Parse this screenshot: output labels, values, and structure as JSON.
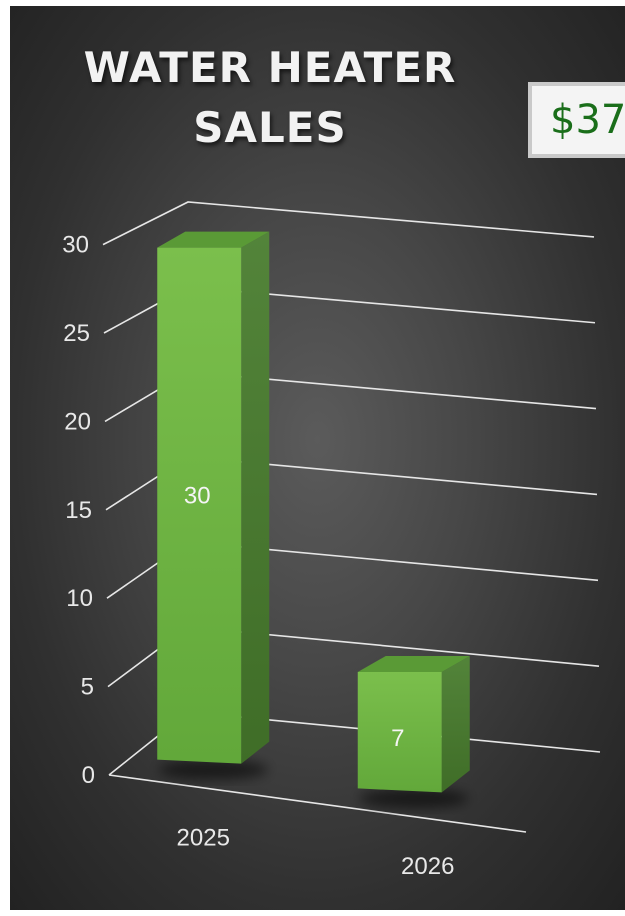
{
  "chart_data": {
    "type": "bar",
    "title": "WATER HEATER SALES",
    "title_lines": [
      "WATER HEATER",
      "SALES"
    ],
    "categories": [
      "2025",
      "2026"
    ],
    "values": [
      30,
      7
    ],
    "data_labels": [
      "30",
      "7"
    ],
    "ylim": [
      0,
      30
    ],
    "yticks": [
      "0",
      "5",
      "10",
      "15",
      "20",
      "25",
      "30"
    ],
    "grid": true,
    "bar_color": "#6ab03d",
    "style": "3d-column"
  },
  "total_badge": {
    "text": "$37"
  },
  "colors": {
    "background": "#3a3a3a",
    "bar_front": "#6ab03d",
    "bar_side": "#4a7c2b",
    "bar_top": "#5a9a36",
    "gridline": "#e6e6e6",
    "badge_text": "#1a6e1a"
  }
}
